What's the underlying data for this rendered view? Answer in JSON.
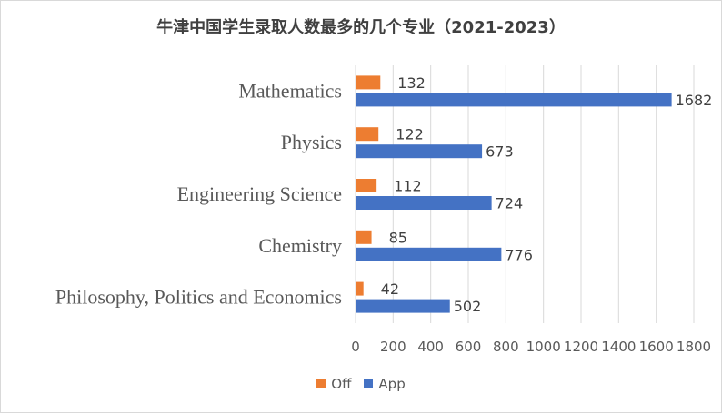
{
  "chart_data": {
    "type": "bar",
    "orientation": "horizontal",
    "title": "牛津中国学生录取人数最多的几个专业（2021-2023）",
    "categories": [
      "Mathematics",
      "Physics",
      "Engineering Science",
      "Chemistry",
      "Philosophy, Politics and Economics"
    ],
    "series": [
      {
        "name": "Off",
        "color": "#ED7D31",
        "values": [
          132,
          122,
          112,
          85,
          42
        ]
      },
      {
        "name": "App",
        "color": "#4472C4",
        "values": [
          1682,
          673,
          724,
          776,
          502
        ]
      }
    ],
    "xlim": [
      0,
      1800
    ],
    "xticks": [
      0,
      200,
      400,
      600,
      800,
      1000,
      1200,
      1400,
      1600,
      1800
    ],
    "grid": "vertical",
    "legend_position": "bottom",
    "data_labels": true
  }
}
